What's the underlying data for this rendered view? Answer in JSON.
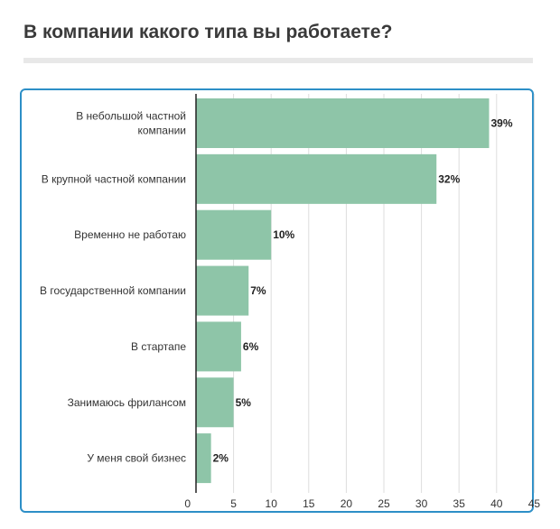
{
  "title": "В компании какого типа вы работаете?",
  "colors": {
    "bar": "#8ec5a8",
    "frame": "#2d8fc7",
    "grid": "#dddddd",
    "axis": "#222222",
    "title_rule": "#e8e8e8"
  },
  "chart_data": {
    "type": "bar",
    "orientation": "horizontal",
    "categories": [
      [
        "В небольшой частной",
        "компании"
      ],
      [
        "В крупной частной компании"
      ],
      [
        "Временно не работаю"
      ],
      [
        "В государственной компании"
      ],
      [
        "В стартапе"
      ],
      [
        "Занимаюсь фрилансом"
      ],
      [
        "У меня свой бизнес"
      ]
    ],
    "values": [
      39,
      32,
      10,
      7,
      6,
      5,
      2
    ],
    "value_labels": [
      "39%",
      "32%",
      "10%",
      "7%",
      "6%",
      "5%",
      "2%"
    ],
    "xlim": [
      0,
      45
    ],
    "xticks": [
      0,
      5,
      10,
      15,
      20,
      25,
      30,
      35,
      40,
      45
    ],
    "grid": true
  }
}
